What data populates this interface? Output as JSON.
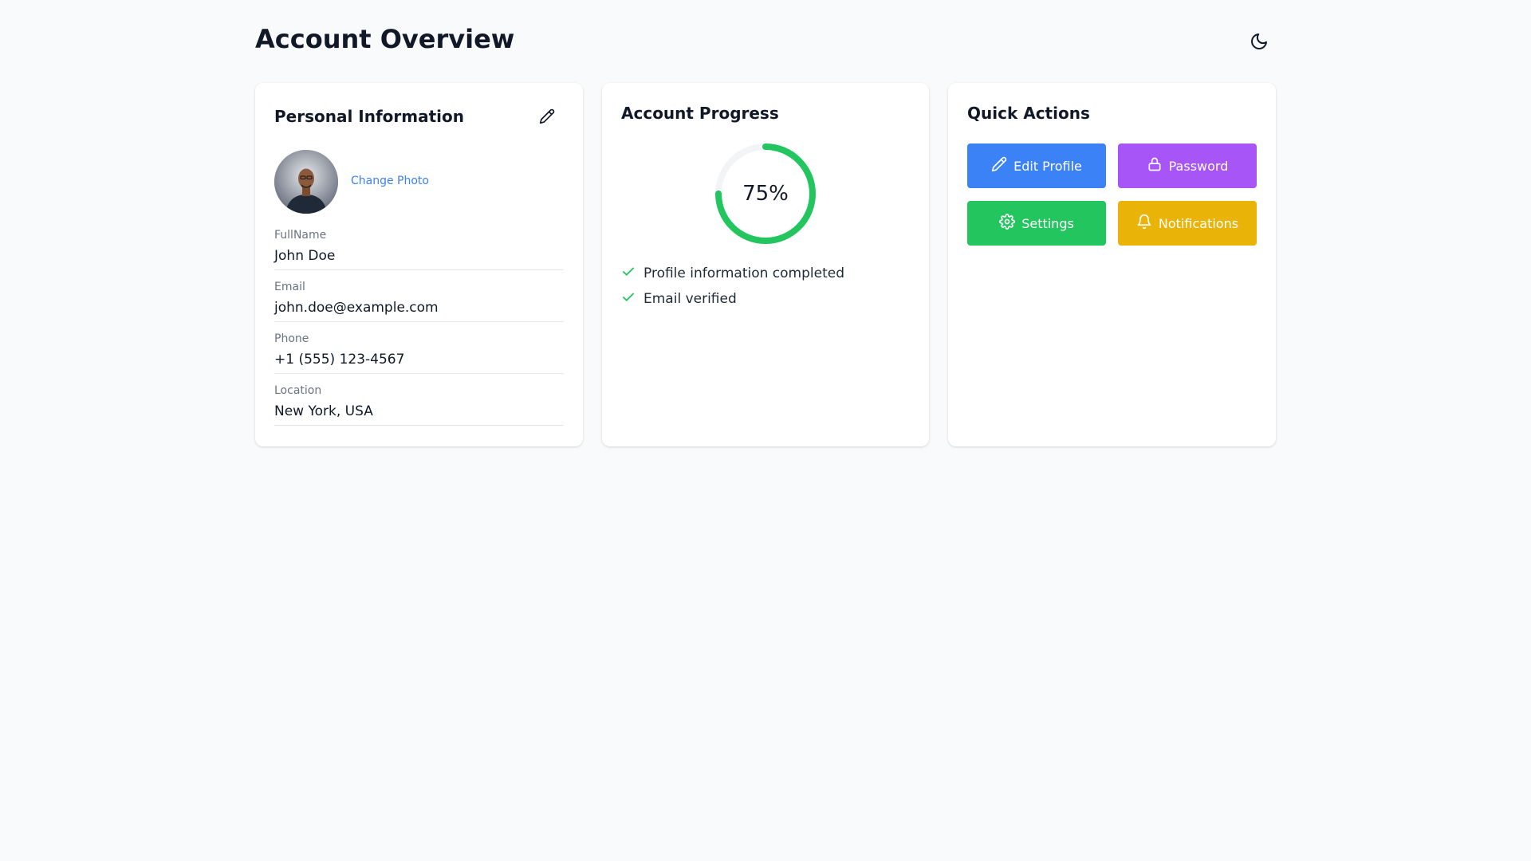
{
  "page": {
    "title": "Account Overview",
    "theme_toggle_icon": "moon-icon"
  },
  "personal": {
    "title": "Personal Information",
    "edit_icon": "pencil-icon",
    "change_photo": "Change Photo",
    "fields": [
      {
        "label": "FullName",
        "value": "John Doe"
      },
      {
        "label": "Email",
        "value": "john.doe@example.com"
      },
      {
        "label": "Phone",
        "value": "+1 (555) 123-4567"
      },
      {
        "label": "Location",
        "value": "New York, USA"
      }
    ]
  },
  "progress": {
    "title": "Account Progress",
    "percent": 75,
    "percent_label": "75%",
    "color": "#22c55e",
    "items": [
      {
        "label": "Profile information completed",
        "icon": "check-icon"
      },
      {
        "label": "Email verified",
        "icon": "check-icon"
      }
    ]
  },
  "actions": {
    "title": "Quick Actions",
    "buttons": [
      {
        "label": "Edit Profile",
        "icon": "pencil-icon",
        "color": "#3b82f6"
      },
      {
        "label": "Password",
        "icon": "lock-icon",
        "color": "#a855f7"
      },
      {
        "label": "Settings",
        "icon": "gear-icon",
        "color": "#22c55e"
      },
      {
        "label": "Notifications",
        "icon": "bell-icon",
        "color": "#eab308"
      }
    ]
  }
}
